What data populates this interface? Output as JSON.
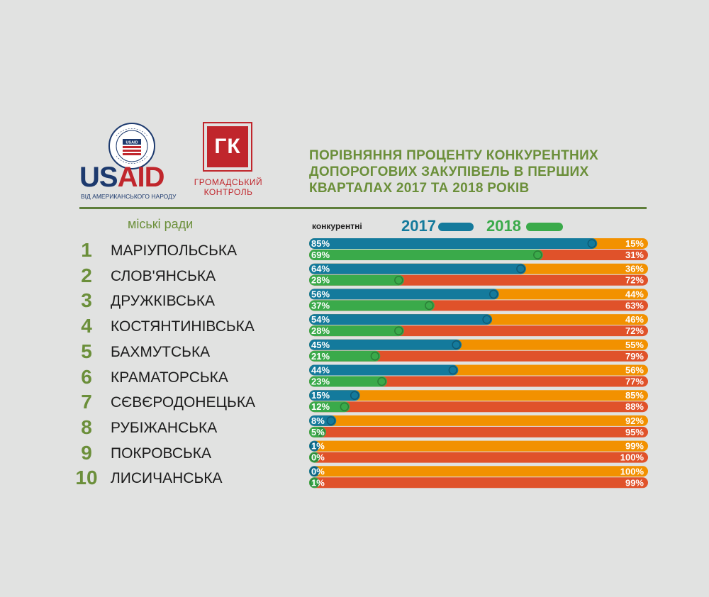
{
  "usaid": {
    "wordmark_a": "US",
    "wordmark_b": "AID",
    "tagline": "ВІД АМЕРИКАНСЬКОГО НАРОДУ",
    "seal_text": "USAID"
  },
  "gk": {
    "letters": "ГК",
    "name_line1": "ГРОМАДСЬКИЙ",
    "name_line2": "КОНТРОЛЬ"
  },
  "title": {
    "line1": "ПОРІВНЯННЯ ПРОЦЕНТУ  КОНКУРЕНТНИХ",
    "line2": "ДОПОРОГОВИХ ЗАКУПІВЕЛЬ В ПЕРШИХ",
    "line3": "КВАРТАЛАХ 2017 ТА 2018 РОКІВ"
  },
  "cities_header": "міські ради",
  "legend": {
    "label": "конкурентні",
    "series_2017": "2017",
    "series_2018": "2018"
  },
  "colors": {
    "bar_2017": "#147a9c",
    "bar_2018": "#3aaa4a",
    "rest_2017": "#f29100",
    "rest_2018": "#e0522a",
    "accent_green": "#6b8f3a"
  },
  "chart_data": {
    "type": "bar",
    "orientation": "horizontal-stacked-percent",
    "title": "ПОРІВНЯННЯ ПРОЦЕНТУ КОНКУРЕНТНИХ ДОПОРОГОВИХ ЗАКУПІВЕЛЬ В ПЕРШИХ КВАРТАЛАХ 2017 ТА 2018 РОКІВ",
    "xlim": [
      0,
      100
    ],
    "categories": [
      {
        "rank": "1",
        "name": "МАРІУПОЛЬСЬКА"
      },
      {
        "rank": "2",
        "name": "СЛОВ'ЯНСЬКА"
      },
      {
        "rank": "3",
        "name": "ДРУЖКІВСЬКА"
      },
      {
        "rank": "4",
        "name": "КОСТЯНТИНІВСЬКА"
      },
      {
        "rank": "5",
        "name": "БАХМУТСЬКА"
      },
      {
        "rank": "6",
        "name": "КРАМАТОРСЬКА"
      },
      {
        "rank": "7",
        "name": "СЄВЄРОДОНЕЦЬКА"
      },
      {
        "rank": "8",
        "name": "РУБІЖАНСЬКА"
      },
      {
        "rank": "9",
        "name": "ПОКРОВСЬКА"
      },
      {
        "rank": "10",
        "name": "ЛИСИЧАНСЬКА"
      }
    ],
    "series": [
      {
        "name": "2017",
        "competitive": [
          85,
          64,
          56,
          54,
          45,
          44,
          15,
          8,
          1,
          0
        ],
        "competitive_labels": [
          "85%",
          "64%",
          "56%",
          "54%",
          "45%",
          "44%",
          "15%",
          "8%",
          "1%",
          "0%"
        ],
        "other_labels": [
          "15%",
          "36%",
          "44%",
          "46%",
          "55%",
          "56%",
          "85%",
          "92%",
          "99%",
          "100%"
        ]
      },
      {
        "name": "2018",
        "competitive": [
          69,
          28,
          37,
          28,
          21,
          23,
          12,
          5,
          0,
          1
        ],
        "competitive_labels": [
          "69%",
          "28%",
          "37%",
          "28%",
          "21%",
          "23%",
          "12%",
          "5%",
          "0%",
          "1%"
        ],
        "other_labels": [
          "31%",
          "72%",
          "63%",
          "72%",
          "79%",
          "77%",
          "88%",
          "95%",
          "100%",
          "99%"
        ]
      }
    ]
  }
}
